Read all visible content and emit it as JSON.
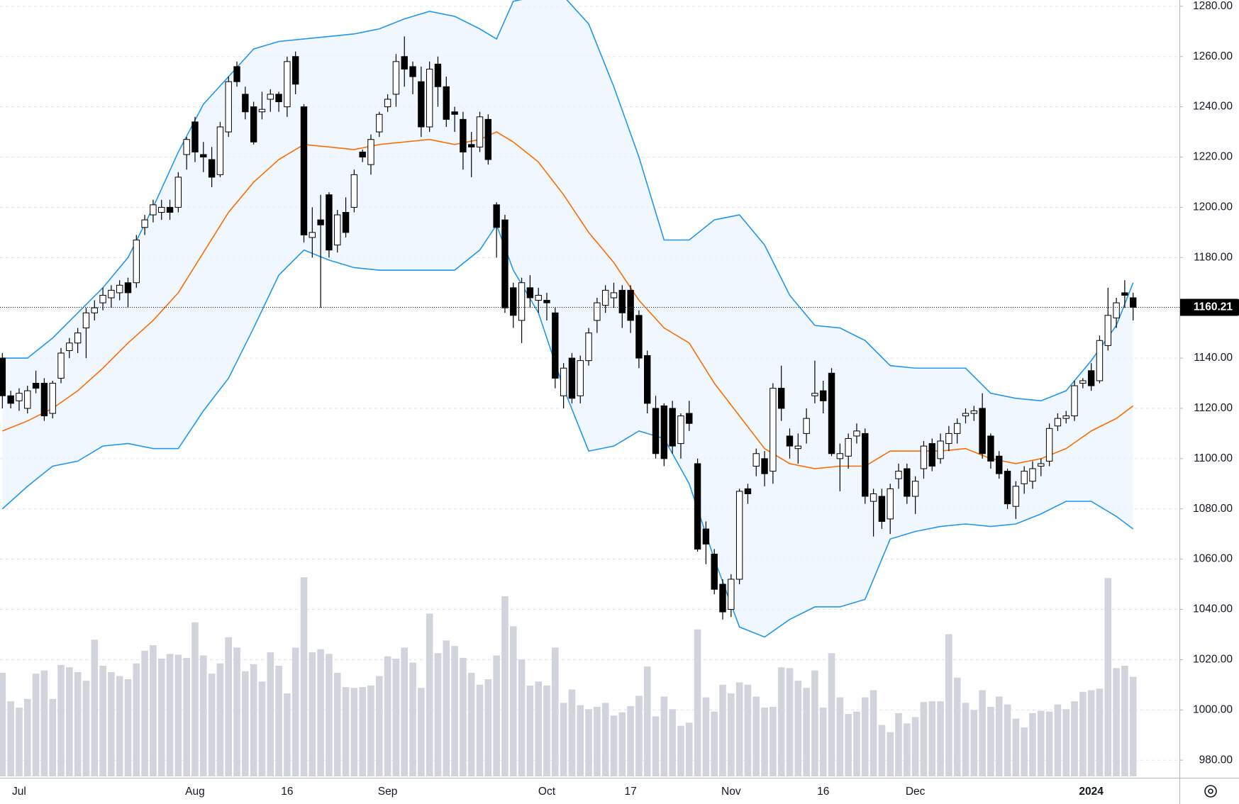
{
  "chart_data": {
    "type": "candlestick",
    "categories": [
      null,
      null,
      "Jul",
      null,
      null,
      null,
      null,
      null,
      null,
      null,
      null,
      null,
      null,
      null,
      null,
      null,
      null,
      null,
      null,
      null,
      null,
      null,
      null,
      "Aug",
      null,
      null,
      null,
      null,
      null,
      null,
      null,
      null,
      null,
      null,
      "16",
      null,
      null,
      null,
      null,
      null,
      null,
      null,
      null,
      null,
      null,
      null,
      "Sep",
      null,
      null,
      null,
      null,
      null,
      null,
      null,
      null,
      null,
      null,
      null,
      null,
      null,
      null,
      null,
      null,
      null,
      null,
      "Oct",
      null,
      null,
      null,
      null,
      null,
      null,
      null,
      null,
      null,
      "17",
      null,
      null,
      null,
      null,
      null,
      null,
      null,
      null,
      null,
      null,
      null,
      "Nov",
      null,
      null,
      null,
      null,
      null,
      null,
      null,
      null,
      null,
      null,
      "16",
      null,
      null,
      null,
      null,
      null,
      null,
      null,
      null,
      null,
      null,
      "Dec",
      null,
      null,
      null,
      null,
      null,
      null,
      null,
      null,
      null,
      null,
      null,
      null,
      null,
      null,
      null,
      null,
      null,
      null,
      null,
      null,
      "2024",
      null,
      null,
      null,
      null,
      null
    ],
    "ohlc": [
      [
        1140,
        1142,
        1120,
        1125
      ],
      [
        1125,
        1127,
        1120,
        1122
      ],
      [
        1123,
        1128,
        1119,
        1126
      ],
      [
        1120,
        1129,
        1118,
        1127
      ],
      [
        1130,
        1135,
        1126,
        1128
      ],
      [
        1130,
        1132,
        1115,
        1117
      ],
      [
        1118,
        1131,
        1116,
        1130
      ],
      [
        1132,
        1144,
        1130,
        1142
      ],
      [
        1143,
        1148,
        1140,
        1146
      ],
      [
        1146,
        1152,
        1142,
        1150
      ],
      [
        1152,
        1160,
        1140,
        1158
      ],
      [
        1158,
        1163,
        1155,
        1160
      ],
      [
        1162,
        1168,
        1159,
        1165
      ],
      [
        1164,
        1169,
        1160,
        1167
      ],
      [
        1166,
        1171,
        1163,
        1169
      ],
      [
        1170,
        1172,
        1160,
        1166
      ],
      [
        1170,
        1189,
        1168,
        1187
      ],
      [
        1192,
        1197,
        1189,
        1195
      ],
      [
        1197,
        1203,
        1194,
        1201
      ],
      [
        1198,
        1203,
        1195,
        1200
      ],
      [
        1200,
        1203,
        1195,
        1198
      ],
      [
        1200,
        1214,
        1198,
        1212
      ],
      [
        1221,
        1228,
        1215,
        1227
      ],
      [
        1234,
        1236,
        1218,
        1222
      ],
      [
        1221,
        1226,
        1214,
        1220
      ],
      [
        1219,
        1224,
        1208,
        1212
      ],
      [
        1213,
        1234,
        1212,
        1232
      ],
      [
        1230,
        1252,
        1228,
        1250
      ],
      [
        1256,
        1258,
        1248,
        1250
      ],
      [
        1245,
        1248,
        1235,
        1238
      ],
      [
        1240,
        1242,
        1225,
        1226
      ],
      [
        1238,
        1246,
        1235,
        1239
      ],
      [
        1243,
        1247,
        1238,
        1245
      ],
      [
        1245,
        1246,
        1238,
        1242
      ],
      [
        1240,
        1260,
        1236,
        1258
      ],
      [
        1260,
        1262,
        1245,
        1249
      ],
      [
        1240,
        1241,
        1186,
        1189
      ],
      [
        1188,
        1200,
        1180,
        1190
      ],
      [
        1195,
        1205,
        1160,
        1193
      ],
      [
        1205,
        1206,
        1180,
        1183
      ],
      [
        1185,
        1199,
        1182,
        1197
      ],
      [
        1198,
        1204,
        1188,
        1190
      ],
      [
        1200,
        1215,
        1198,
        1213
      ],
      [
        1222,
        1223,
        1218,
        1220
      ],
      [
        1217,
        1229,
        1213,
        1227
      ],
      [
        1230,
        1238,
        1228,
        1237
      ],
      [
        1240,
        1245,
        1238,
        1243
      ],
      [
        1245,
        1261,
        1240,
        1258
      ],
      [
        1260,
        1268,
        1248,
        1255
      ],
      [
        1256,
        1258,
        1245,
        1252
      ],
      [
        1250,
        1256,
        1228,
        1232
      ],
      [
        1232,
        1258,
        1230,
        1255
      ],
      [
        1257,
        1260,
        1240,
        1248
      ],
      [
        1248,
        1252,
        1232,
        1235
      ],
      [
        1238,
        1240,
        1230,
        1237
      ],
      [
        1235,
        1238,
        1215,
        1222
      ],
      [
        1225,
        1230,
        1212,
        1224
      ],
      [
        1224,
        1238,
        1222,
        1236
      ],
      [
        1235,
        1237,
        1217,
        1219
      ],
      [
        1201,
        1202,
        1180,
        1192
      ],
      [
        1195,
        1197,
        1158,
        1160
      ],
      [
        1168,
        1170,
        1152,
        1157
      ],
      [
        1155,
        1172,
        1146,
        1170
      ],
      [
        1168,
        1173,
        1160,
        1164
      ],
      [
        1163,
        1168,
        1158,
        1165
      ],
      [
        1163,
        1166,
        1155,
        1162
      ],
      [
        1158,
        1160,
        1128,
        1132
      ],
      [
        1125,
        1138,
        1120,
        1136
      ],
      [
        1140,
        1142,
        1122,
        1124
      ],
      [
        1125,
        1141,
        1122,
        1139
      ],
      [
        1139,
        1152,
        1137,
        1150
      ],
      [
        1155,
        1164,
        1150,
        1162
      ],
      [
        1161,
        1169,
        1158,
        1167
      ],
      [
        1164,
        1170,
        1160,
        1166
      ],
      [
        1167,
        1169,
        1152,
        1158
      ],
      [
        1167,
        1169,
        1150,
        1155
      ],
      [
        1157,
        1159,
        1136,
        1140
      ],
      [
        1141,
        1143,
        1118,
        1122
      ],
      [
        1120,
        1125,
        1100,
        1102
      ],
      [
        1121,
        1122,
        1097,
        1100
      ],
      [
        1120,
        1123,
        1102,
        1105
      ],
      [
        1106,
        1118,
        1100,
        1117
      ],
      [
        1118,
        1123,
        1111,
        1114
      ],
      [
        1098,
        1100,
        1063,
        1064
      ],
      [
        1072,
        1075,
        1058,
        1066
      ],
      [
        1062,
        1064,
        1046,
        1048
      ],
      [
        1050,
        1052,
        1036,
        1039
      ],
      [
        1040,
        1054,
        1037,
        1052
      ],
      [
        1052,
        1088,
        1050,
        1087
      ],
      [
        1088,
        1090,
        1082,
        1086
      ],
      [
        1097,
        1104,
        1093,
        1102
      ],
      [
        1100,
        1103,
        1089,
        1094
      ],
      [
        1095,
        1130,
        1090,
        1128
      ],
      [
        1128,
        1137,
        1115,
        1120
      ],
      [
        1109,
        1112,
        1100,
        1105
      ],
      [
        1104,
        1110,
        1098,
        1105
      ],
      [
        1110,
        1120,
        1106,
        1116
      ],
      [
        1125,
        1139,
        1122,
        1126
      ],
      [
        1127,
        1131,
        1118,
        1123
      ],
      [
        1134,
        1136,
        1101,
        1102
      ],
      [
        1100,
        1106,
        1087,
        1102
      ],
      [
        1101,
        1110,
        1096,
        1108
      ],
      [
        1109,
        1114,
        1106,
        1111
      ],
      [
        1110,
        1112,
        1082,
        1085
      ],
      [
        1083,
        1088,
        1069,
        1086
      ],
      [
        1085,
        1088,
        1072,
        1075
      ],
      [
        1076,
        1090,
        1070,
        1088
      ],
      [
        1092,
        1098,
        1088,
        1095
      ],
      [
        1096,
        1098,
        1082,
        1085
      ],
      [
        1085,
        1093,
        1078,
        1091
      ],
      [
        1096,
        1107,
        1092,
        1105
      ],
      [
        1106,
        1108,
        1095,
        1097
      ],
      [
        1100,
        1110,
        1098,
        1107
      ],
      [
        1106,
        1113,
        1103,
        1110
      ],
      [
        1110,
        1116,
        1106,
        1114
      ],
      [
        1117,
        1120,
        1114,
        1118
      ],
      [
        1118,
        1121,
        1115,
        1119
      ],
      [
        1120,
        1126,
        1100,
        1102
      ],
      [
        1109,
        1110,
        1096,
        1099
      ],
      [
        1101,
        1103,
        1092,
        1094
      ],
      [
        1095,
        1096,
        1080,
        1082
      ],
      [
        1081,
        1091,
        1076,
        1089
      ],
      [
        1090,
        1097,
        1086,
        1095
      ],
      [
        1091,
        1099,
        1088,
        1096
      ],
      [
        1097,
        1100,
        1093,
        1098
      ],
      [
        1099,
        1114,
        1097,
        1112
      ],
      [
        1113,
        1118,
        1111,
        1116
      ],
      [
        1116,
        1119,
        1114,
        1117
      ],
      [
        1117,
        1131,
        1115,
        1129
      ],
      [
        1130,
        1132,
        1128,
        1131
      ],
      [
        1135,
        1138,
        1127,
        1129
      ],
      [
        1131,
        1149,
        1130,
        1147
      ],
      [
        1145,
        1168,
        1143,
        1157
      ],
      [
        1156,
        1164,
        1152,
        1162
      ],
      [
        1166,
        1171,
        1160,
        1165
      ],
      [
        1164,
        1166,
        1155,
        1160.21
      ]
    ],
    "volume": [
      131,
      95,
      87,
      98,
      130,
      134,
      98,
      141,
      138,
      132,
      121,
      173,
      140,
      132,
      127,
      123,
      143,
      159,
      166,
      149,
      155,
      154,
      150,
      195,
      153,
      130,
      143,
      176,
      163,
      133,
      142,
      120,
      157,
      140,
      105,
      163,
      252,
      157,
      161,
      155,
      131,
      113,
      112,
      113,
      115,
      127,
      152,
      149,
      163,
      144,
      112,
      206,
      156,
      172,
      165,
      150,
      131,
      116,
      123,
      153,
      228,
      190,
      148,
      115,
      120,
      115,
      163,
      93,
      110,
      90,
      85,
      88,
      93,
      77,
      81,
      89,
      102,
      139,
      76,
      101,
      85,
      64,
      68,
      186,
      100,
      82,
      116,
      105,
      119,
      116,
      101,
      87,
      88,
      138,
      137,
      121,
      112,
      134,
      87,
      156,
      100,
      79,
      82,
      100,
      109,
      65,
      56,
      80,
      67,
      75,
      94,
      95,
      95,
      180,
      125,
      93,
      84,
      109,
      88,
      101,
      91,
      73,
      62,
      80,
      83,
      82,
      91,
      85,
      95,
      107,
      109,
      111,
      251,
      137,
      140,
      126
    ],
    "band_x": [
      0,
      3,
      6,
      9,
      12,
      15,
      18,
      21,
      24,
      27,
      30,
      33,
      36,
      39,
      42,
      45,
      48,
      51,
      54,
      57,
      59,
      61,
      64,
      67,
      70,
      73,
      76,
      79,
      82,
      85,
      88,
      91,
      94,
      97,
      100,
      103,
      106,
      109,
      112,
      115,
      118,
      121,
      124,
      127,
      130,
      133,
      135
    ],
    "bands": [
      {
        "color": "#2196f3",
        "values": [
          1140,
          1140,
          1148,
          1158,
          1168,
          1180,
          1200,
          1222,
          1241,
          1252,
          1263,
          1266,
          1267,
          1268,
          1269,
          1271,
          1275,
          1278,
          1276,
          1271,
          1267,
          1282,
          1284,
          1284,
          1273,
          1248,
          1220,
          1187,
          1187,
          1195,
          1197,
          1185,
          1165,
          1153,
          1152,
          1147,
          1137,
          1136,
          1136,
          1136,
          1126,
          1124,
          1123,
          1127,
          1139,
          1153,
          1170
        ]
      },
      {
        "color": "#ff6d00",
        "values": [
          1111,
          1115,
          1120,
          1127,
          1136,
          1146,
          1155,
          1166,
          1182,
          1198,
          1210,
          1219,
          1225,
          1224,
          1223,
          1225,
          1226,
          1227,
          1225,
          1227,
          1230,
          1226,
          1218,
          1205,
          1190,
          1178,
          1163,
          1152,
          1146,
          1130,
          1117,
          1104,
          1098,
          1096,
          1097,
          1097,
          1103,
          1103,
          1103,
          1104,
          1100,
          1098,
          1100,
          1104,
          1111,
          1116,
          1121
        ]
      },
      {
        "color": "#2196f3",
        "values": [
          1080,
          1089,
          1097,
          1099,
          1105,
          1106,
          1104,
          1104,
          1119,
          1132,
          1152,
          1173,
          1183,
          1179,
          1176,
          1175,
          1175,
          1175,
          1175,
          1183,
          1193,
          1175,
          1158,
          1128,
          1103,
          1105,
          1111,
          1108,
          1090,
          1060,
          1033,
          1029,
          1036,
          1041,
          1041,
          1044,
          1068,
          1071,
          1073,
          1074,
          1073,
          1074,
          1078,
          1083,
          1083,
          1077,
          1072
        ]
      }
    ],
    "band_fill": "#e9f4fd",
    "up_color": "#ffffff",
    "down_color": "#000000",
    "volume_color": "#d1d4dc",
    "ylim": [
      973,
      1282.5
    ],
    "yticks": [
      {
        "value": 980,
        "label": "980.00"
      },
      {
        "value": 1000,
        "label": "1000.00"
      },
      {
        "value": 1020,
        "label": "1020.00"
      },
      {
        "value": 1040,
        "label": "1040.00"
      },
      {
        "value": 1060,
        "label": "1060.00"
      },
      {
        "value": 1080,
        "label": "1080.00"
      },
      {
        "value": 1100,
        "label": "1100.00"
      },
      {
        "value": 1120,
        "label": "1120.00"
      },
      {
        "value": 1140,
        "label": "1140.00"
      },
      {
        "value": 1160,
        "label": "1160.00"
      },
      {
        "value": 1180,
        "label": "1180.00"
      },
      {
        "value": 1200,
        "label": "1200.00"
      },
      {
        "value": 1220,
        "label": "1220.00"
      },
      {
        "value": 1240,
        "label": "1240.00"
      },
      {
        "value": 1260,
        "label": "1260.00"
      },
      {
        "value": 1280,
        "label": "1280.00"
      }
    ],
    "grid": true
  }
}
